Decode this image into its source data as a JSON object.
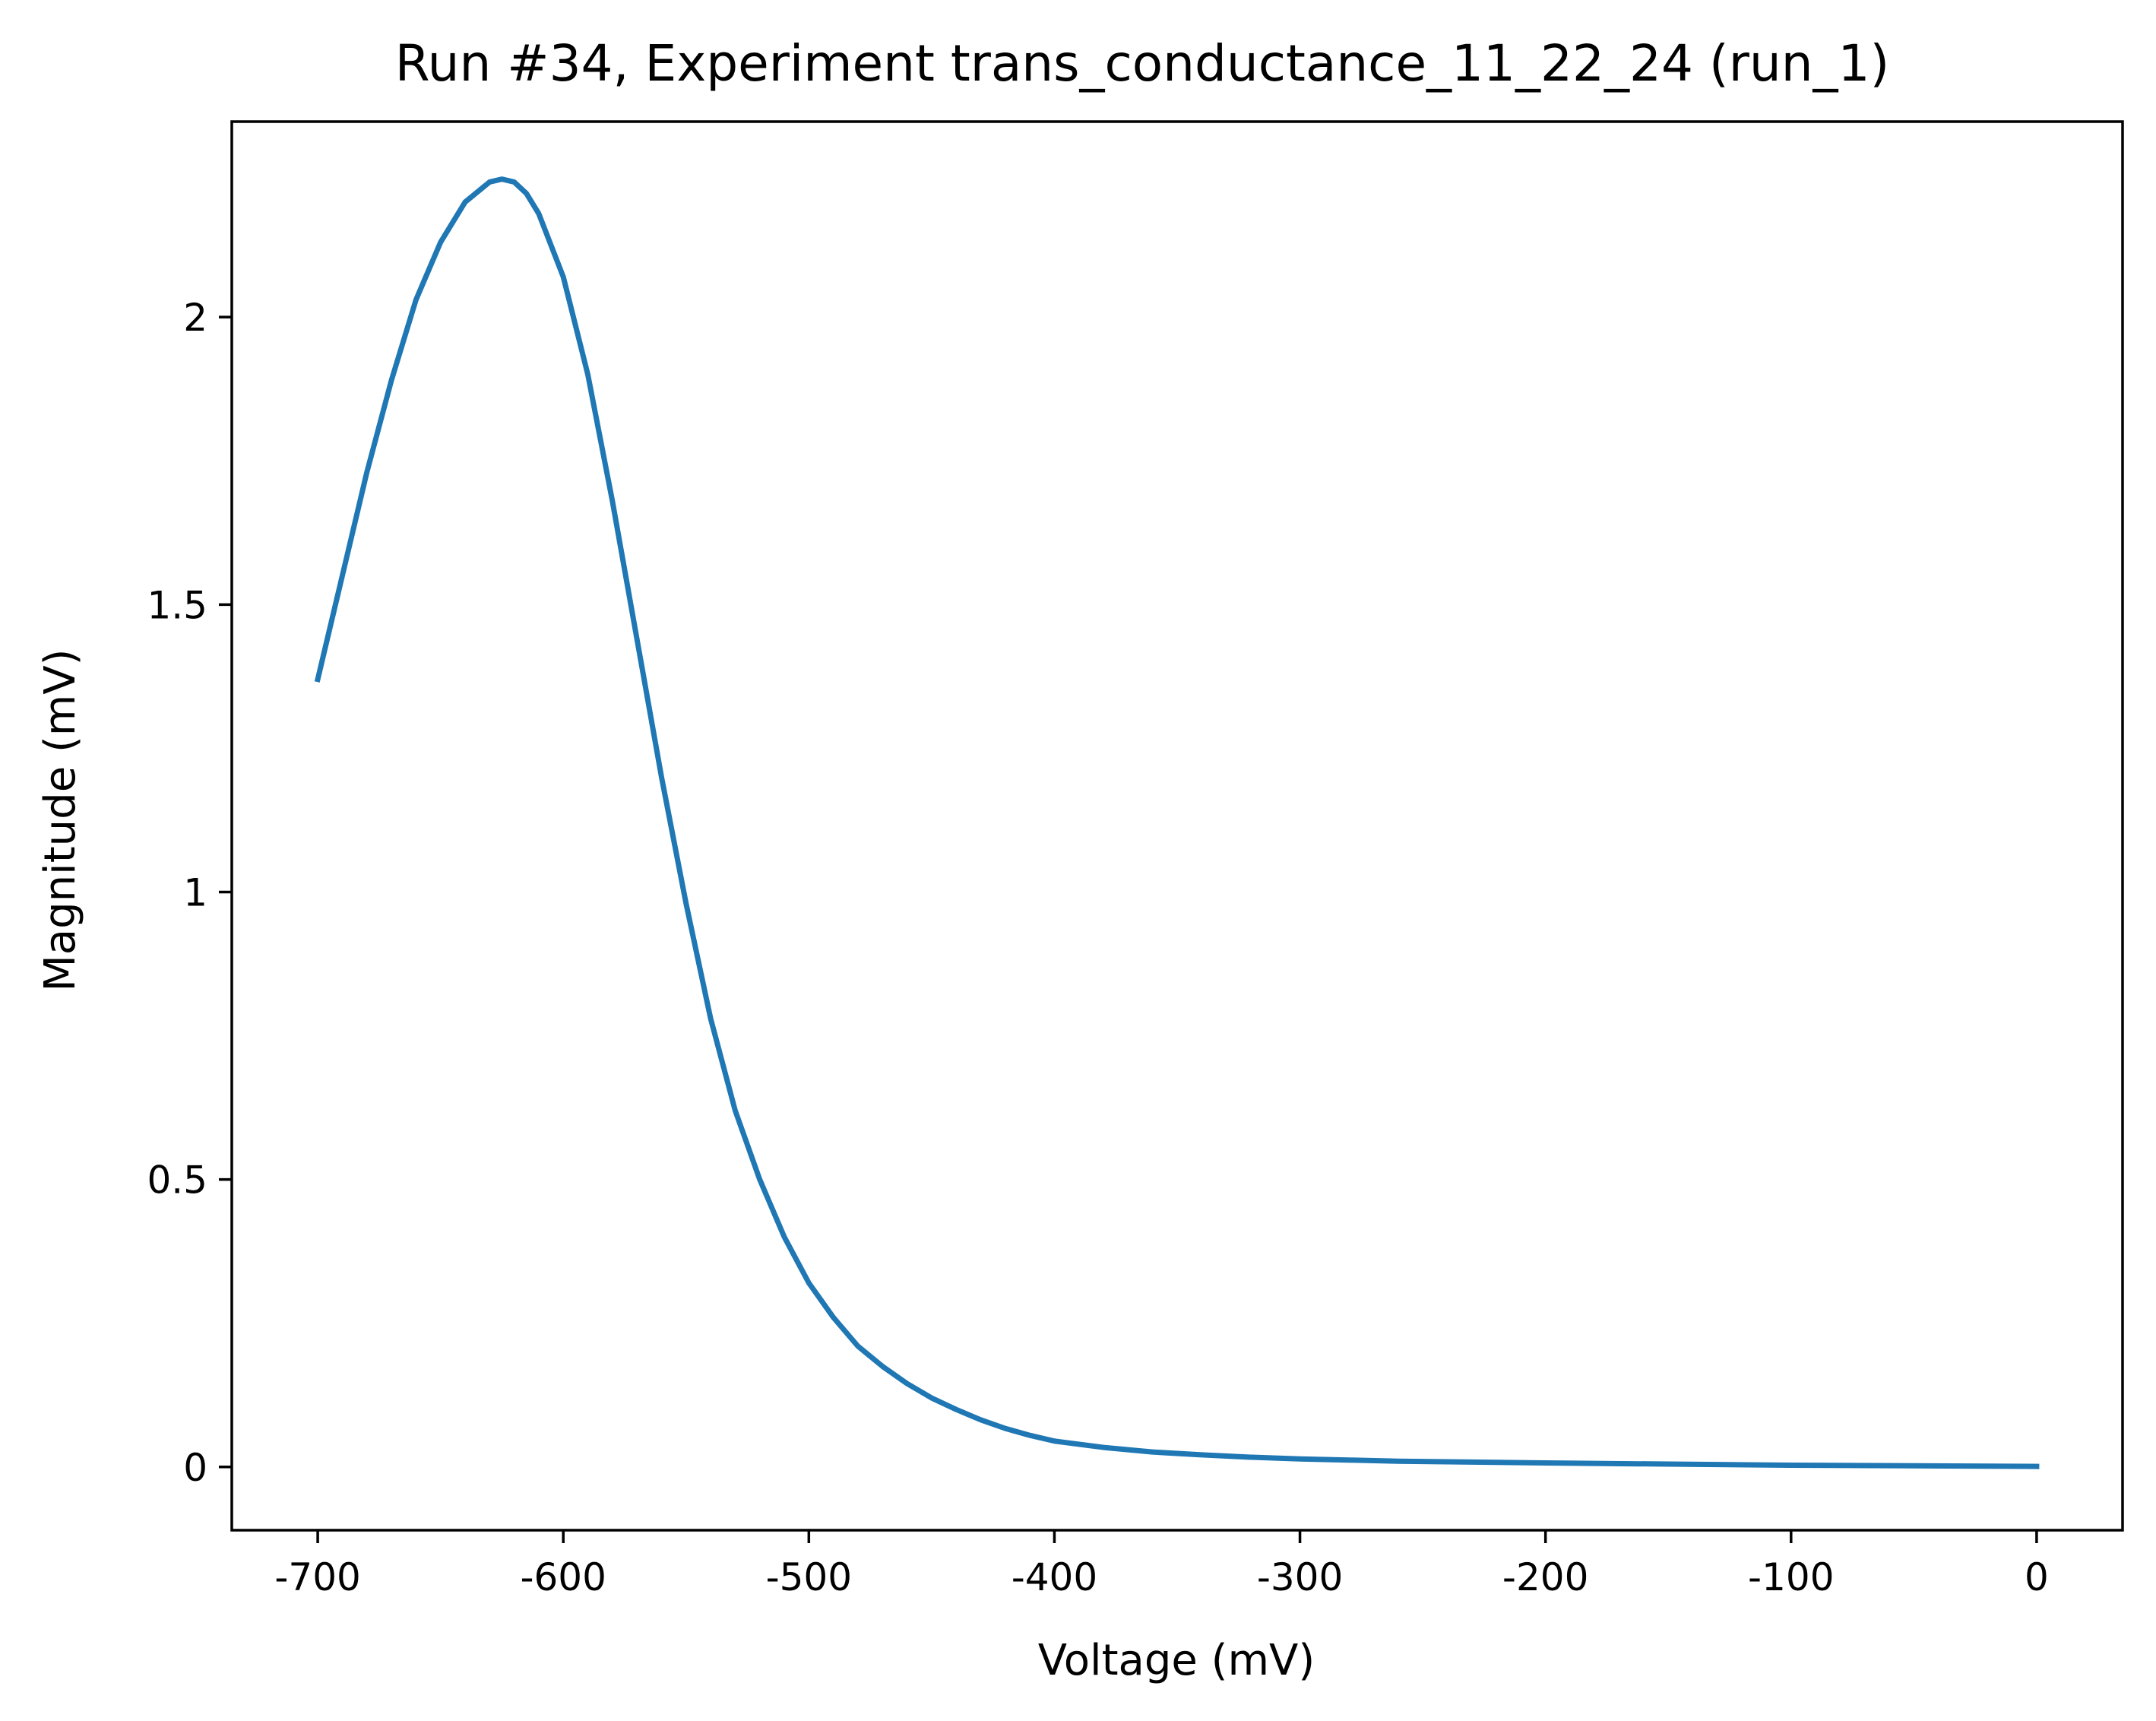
{
  "chart_data": {
    "type": "line",
    "title": "Run #34, Experiment trans_conductance_11_22_24 (run_1)",
    "xlabel": "Voltage (mV)",
    "ylabel": "Magnitude (mV)",
    "xlim": [
      -735,
      35
    ],
    "ylim": [
      -0.11,
      2.34
    ],
    "x_ticks": [
      {
        "value": -700,
        "label": "-700"
      },
      {
        "value": -600,
        "label": "-600"
      },
      {
        "value": -500,
        "label": "-500"
      },
      {
        "value": -400,
        "label": "-400"
      },
      {
        "value": -300,
        "label": "-300"
      },
      {
        "value": -200,
        "label": "-200"
      },
      {
        "value": -100,
        "label": "-100"
      },
      {
        "value": 0,
        "label": "0"
      }
    ],
    "y_ticks": [
      {
        "value": 0,
        "label": "0"
      },
      {
        "value": 0.5,
        "label": "0.5"
      },
      {
        "value": 1,
        "label": "1"
      },
      {
        "value": 1.5,
        "label": "1.5"
      },
      {
        "value": 2,
        "label": "2"
      }
    ],
    "grid": false,
    "series": [
      {
        "color": "#1f77b4",
        "x": [
          -700,
          -690,
          -680,
          -670,
          -660,
          -650,
          -640,
          -630,
          -625,
          -620,
          -615,
          -610,
          -600,
          -590,
          -580,
          -570,
          -560,
          -550,
          -540,
          -530,
          -520,
          -510,
          -500,
          -490,
          -480,
          -470,
          -460,
          -450,
          -440,
          -430,
          -420,
          -410,
          -400,
          -380,
          -360,
          -340,
          -320,
          -300,
          -280,
          -260,
          -240,
          -220,
          -200,
          -150,
          -100,
          -50,
          0
        ],
        "y": [
          1.37,
          1.55,
          1.73,
          1.89,
          2.03,
          2.13,
          2.2,
          2.235,
          2.24,
          2.235,
          2.215,
          2.18,
          2.07,
          1.9,
          1.68,
          1.44,
          1.2,
          0.98,
          0.78,
          0.62,
          0.5,
          0.4,
          0.32,
          0.26,
          0.21,
          0.175,
          0.145,
          0.12,
          0.1,
          0.082,
          0.067,
          0.055,
          0.045,
          0.034,
          0.026,
          0.021,
          0.017,
          0.014,
          0.012,
          0.01,
          0.009,
          0.008,
          0.007,
          0.005,
          0.003,
          0.002,
          0.001
        ]
      }
    ]
  }
}
